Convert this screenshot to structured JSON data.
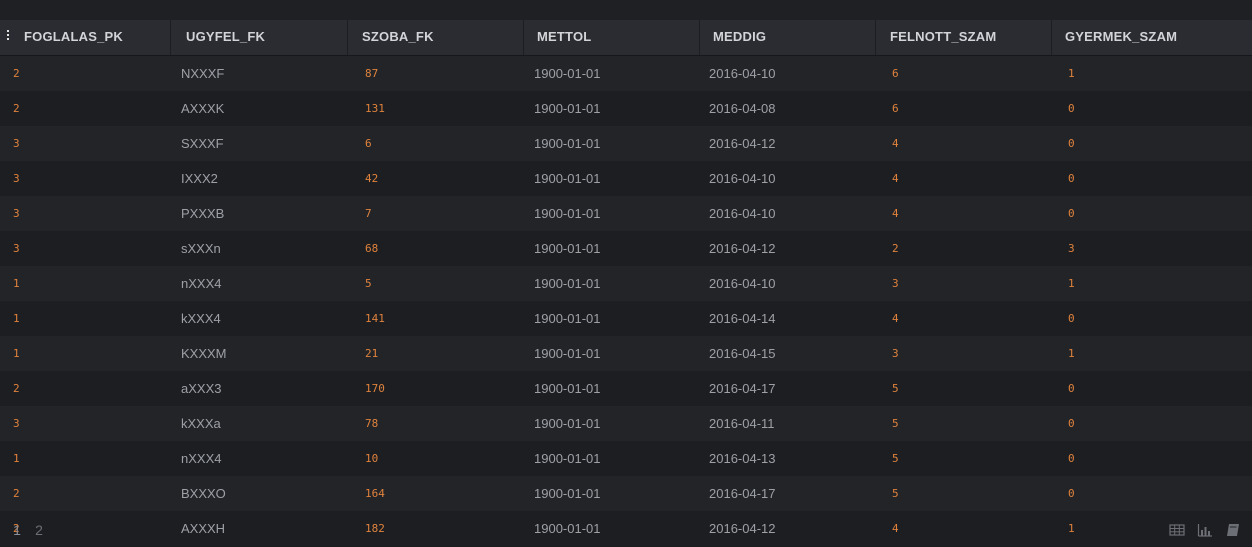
{
  "table": {
    "columns": [
      "FOGLALAS_PK",
      "UGYFEL_FK",
      "SZOBA_FK",
      "METTOL",
      "MEDDIG",
      "FELNOTT_SZAM",
      "GYERMEK_SZAM"
    ],
    "rows": [
      [
        "2",
        "NXXXF",
        "87",
        "1900-01-01",
        "2016-04-10",
        "6",
        "1"
      ],
      [
        "2",
        "AXXXK",
        "131",
        "1900-01-01",
        "2016-04-08",
        "6",
        "0"
      ],
      [
        "3",
        "SXXXF",
        "6",
        "1900-01-01",
        "2016-04-12",
        "4",
        "0"
      ],
      [
        "3",
        "IXXX2",
        "42",
        "1900-01-01",
        "2016-04-10",
        "4",
        "0"
      ],
      [
        "3",
        "PXXXB",
        "7",
        "1900-01-01",
        "2016-04-10",
        "4",
        "0"
      ],
      [
        "3",
        "sXXXn",
        "68",
        "1900-01-01",
        "2016-04-12",
        "2",
        "3"
      ],
      [
        "1",
        "nXXX4",
        "5",
        "1900-01-01",
        "2016-04-10",
        "3",
        "1"
      ],
      [
        "1",
        "kXXX4",
        "141",
        "1900-01-01",
        "2016-04-14",
        "4",
        "0"
      ],
      [
        "1",
        "KXXXM",
        "21",
        "1900-01-01",
        "2016-04-15",
        "3",
        "1"
      ],
      [
        "2",
        "aXXX3",
        "170",
        "1900-01-01",
        "2016-04-17",
        "5",
        "0"
      ],
      [
        "3",
        "kXXXa",
        "78",
        "1900-01-01",
        "2016-04-11",
        "5",
        "0"
      ],
      [
        "1",
        "nXXX4",
        "10",
        "1900-01-01",
        "2016-04-13",
        "5",
        "0"
      ],
      [
        "2",
        "BXXXO",
        "164",
        "1900-01-01",
        "2016-04-17",
        "5",
        "0"
      ],
      [
        "2",
        "AXXXH",
        "182",
        "1900-01-01",
        "2016-04-12",
        "4",
        "1"
      ]
    ]
  },
  "pagination": {
    "pages": [
      "1",
      "2"
    ],
    "current": "1"
  },
  "toolbar": {
    "icons": [
      "table-view-icon",
      "chart-view-icon",
      "book-icon"
    ]
  },
  "colors": {
    "background": "#1a1c20",
    "header_background": "#2a2c31",
    "numeric_text": "#e0823c",
    "text": "#9da0a6"
  }
}
